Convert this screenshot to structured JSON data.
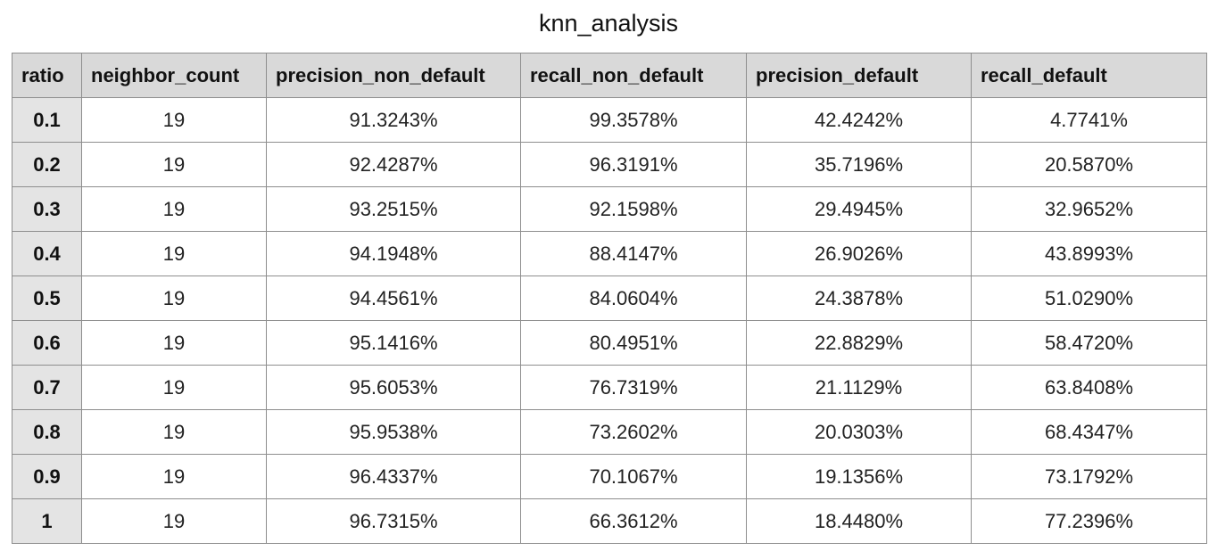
{
  "title": "knn_analysis",
  "table": {
    "headers": [
      "ratio",
      "neighbor_count",
      "precision_non_default",
      "recall_non_default",
      "precision_default",
      "recall_default"
    ],
    "rows": [
      [
        "0.1",
        "19",
        "91.3243%",
        "99.3578%",
        "42.4242%",
        "4.7741%"
      ],
      [
        "0.2",
        "19",
        "92.4287%",
        "96.3191%",
        "35.7196%",
        "20.5870%"
      ],
      [
        "0.3",
        "19",
        "93.2515%",
        "92.1598%",
        "29.4945%",
        "32.9652%"
      ],
      [
        "0.4",
        "19",
        "94.1948%",
        "88.4147%",
        "26.9026%",
        "43.8993%"
      ],
      [
        "0.5",
        "19",
        "94.4561%",
        "84.0604%",
        "24.3878%",
        "51.0290%"
      ],
      [
        "0.6",
        "19",
        "95.1416%",
        "80.4951%",
        "22.8829%",
        "58.4720%"
      ],
      [
        "0.7",
        "19",
        "95.6053%",
        "76.7319%",
        "21.1129%",
        "63.8408%"
      ],
      [
        "0.8",
        "19",
        "95.9538%",
        "73.2602%",
        "20.0303%",
        "68.4347%"
      ],
      [
        "0.9",
        "19",
        "96.4337%",
        "70.1067%",
        "19.1356%",
        "73.1792%"
      ],
      [
        "1",
        "19",
        "96.7315%",
        "66.3612%",
        "18.4480%",
        "77.2396%"
      ]
    ]
  }
}
